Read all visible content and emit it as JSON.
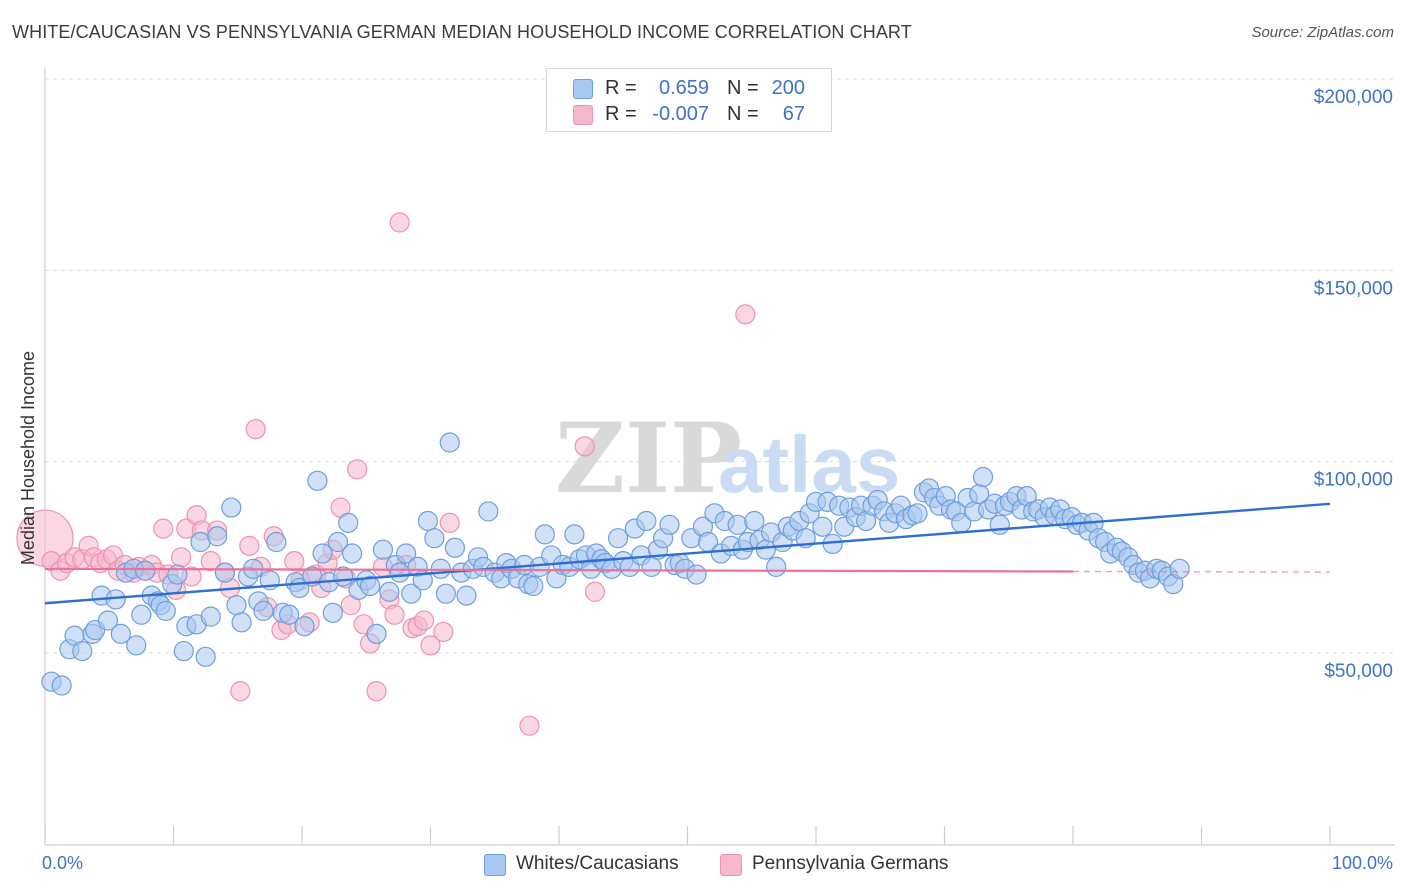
{
  "header": {
    "title": "WHITE/CAUCASIAN VS PENNSYLVANIA GERMAN MEDIAN HOUSEHOLD INCOME CORRELATION CHART",
    "source": "Source: ZipAtlas.com"
  },
  "watermark": "ZIPatlas",
  "legend_top": [
    {
      "r_label": "R =",
      "r_value": "0.659",
      "n_label": "N =",
      "n_value": "200",
      "color": "#a9c8f1"
    },
    {
      "r_label": "R =",
      "r_value": "-0.007",
      "n_label": "N =",
      "n_value": "67",
      "color": "#f5b7ca"
    }
  ],
  "legend_bottom": [
    {
      "label": "Whites/Caucasians",
      "color": "#a9c8f1"
    },
    {
      "label": "Pennsylvania Germans",
      "color": "#f5b7ca"
    }
  ],
  "colors": {
    "blue_fill": "#a9c8f1",
    "blue_stroke": "#6f9edc",
    "blue_line": "#2f6fcf",
    "pink_fill": "#f5b7ca",
    "pink_stroke": "#ec93ae",
    "pink_line": "#e8729b",
    "tick": "#3d72c9",
    "grid": "#dddddd"
  },
  "chart_data": {
    "type": "scatter",
    "title": "WHITE/CAUCASIAN VS PENNSYLVANIA GERMAN MEDIAN HOUSEHOLD INCOME CORRELATION CHART",
    "xlabel": "",
    "ylabel": "Median Household Income",
    "xlim": [
      0,
      100
    ],
    "ylim": [
      0,
      210000
    ],
    "x_tick_labels": [
      {
        "value": 0,
        "label": "0.0%"
      },
      {
        "value": 100,
        "label": "100.0%"
      }
    ],
    "y_ticks": [
      {
        "value": 50000,
        "label": "$50,000"
      },
      {
        "value": 100000,
        "label": "$100,000"
      },
      {
        "value": 150000,
        "label": "$150,000"
      },
      {
        "value": 200000,
        "label": "$200,000"
      }
    ],
    "grid": "horizontal dashed",
    "series": [
      {
        "name": "Whites/Caucasians",
        "trend": {
          "x0": 0,
          "y0": 63000,
          "x1": 100,
          "y1": 89000
        },
        "points": [
          [
            0.5,
            42500
          ],
          [
            1.3,
            41500
          ],
          [
            1.9,
            51000
          ],
          [
            2.3,
            54500
          ],
          [
            2.9,
            50500
          ],
          [
            3.7,
            55000
          ],
          [
            3.9,
            56000
          ],
          [
            4.4,
            65000
          ],
          [
            4.9,
            58500
          ],
          [
            5.5,
            64000
          ],
          [
            5.9,
            55000
          ],
          [
            6.3,
            71000
          ],
          [
            6.9,
            72000
          ],
          [
            7.1,
            52000
          ],
          [
            7.5,
            60000
          ],
          [
            7.8,
            71500
          ],
          [
            8.3,
            65000
          ],
          [
            8.8,
            63500
          ],
          [
            9.0,
            62500
          ],
          [
            9.4,
            61000
          ],
          [
            9.9,
            68000
          ],
          [
            10.3,
            70500
          ],
          [
            10.8,
            50500
          ],
          [
            11.0,
            57000
          ],
          [
            11.8,
            57500
          ],
          [
            12.1,
            79000
          ],
          [
            12.5,
            49000
          ],
          [
            12.9,
            59500
          ],
          [
            13.4,
            80500
          ],
          [
            14.0,
            71000
          ],
          [
            14.5,
            88000
          ],
          [
            14.9,
            62500
          ],
          [
            15.3,
            58000
          ],
          [
            15.8,
            70000
          ],
          [
            16.2,
            72000
          ],
          [
            16.6,
            63500
          ],
          [
            17.0,
            61000
          ],
          [
            17.5,
            69000
          ],
          [
            18.0,
            79000
          ],
          [
            18.5,
            60500
          ],
          [
            19.0,
            60000
          ],
          [
            19.5,
            68500
          ],
          [
            19.8,
            67000
          ],
          [
            20.2,
            57000
          ],
          [
            20.8,
            70000
          ],
          [
            21.2,
            95000
          ],
          [
            21.6,
            76000
          ],
          [
            22.1,
            68500
          ],
          [
            22.4,
            60500
          ],
          [
            22.8,
            79000
          ],
          [
            23.2,
            70000
          ],
          [
            23.6,
            84000
          ],
          [
            23.9,
            76000
          ],
          [
            24.4,
            66500
          ],
          [
            25.0,
            69000
          ],
          [
            25.3,
            67500
          ],
          [
            25.8,
            55000
          ],
          [
            26.3,
            77000
          ],
          [
            26.8,
            66000
          ],
          [
            27.3,
            73000
          ],
          [
            27.6,
            71000
          ],
          [
            28.1,
            76000
          ],
          [
            28.5,
            65500
          ],
          [
            29.0,
            72500
          ],
          [
            29.4,
            69000
          ],
          [
            29.8,
            84500
          ],
          [
            30.3,
            80000
          ],
          [
            30.8,
            72000
          ],
          [
            31.2,
            65500
          ],
          [
            31.5,
            105000
          ],
          [
            31.9,
            77500
          ],
          [
            32.4,
            71000
          ],
          [
            32.8,
            65000
          ],
          [
            33.3,
            72000
          ],
          [
            33.7,
            75000
          ],
          [
            34.1,
            72500
          ],
          [
            34.5,
            87000
          ],
          [
            35.0,
            71000
          ],
          [
            35.5,
            69500
          ],
          [
            35.9,
            73500
          ],
          [
            36.3,
            72000
          ],
          [
            36.8,
            69500
          ],
          [
            37.3,
            73000
          ],
          [
            37.6,
            68000
          ],
          [
            38.0,
            67500
          ],
          [
            38.5,
            72500
          ],
          [
            38.9,
            81000
          ],
          [
            39.4,
            75500
          ],
          [
            39.8,
            69500
          ],
          [
            40.3,
            73000
          ],
          [
            40.8,
            72500
          ],
          [
            41.2,
            81000
          ],
          [
            41.6,
            74500
          ],
          [
            42.1,
            75500
          ],
          [
            42.5,
            72000
          ],
          [
            42.9,
            76000
          ],
          [
            43.3,
            74500
          ],
          [
            43.6,
            73500
          ],
          [
            44.1,
            72000
          ],
          [
            44.6,
            80000
          ],
          [
            45.0,
            74000
          ],
          [
            45.5,
            72500
          ],
          [
            45.9,
            82500
          ],
          [
            46.4,
            75500
          ],
          [
            46.8,
            84500
          ],
          [
            47.2,
            72500
          ],
          [
            47.7,
            77000
          ],
          [
            48.1,
            80000
          ],
          [
            48.6,
            83500
          ],
          [
            49.0,
            73000
          ],
          [
            49.4,
            73500
          ],
          [
            49.8,
            72000
          ],
          [
            50.3,
            80000
          ],
          [
            50.7,
            70500
          ],
          [
            51.2,
            83000
          ],
          [
            51.6,
            79000
          ],
          [
            52.1,
            86500
          ],
          [
            52.6,
            76000
          ],
          [
            52.9,
            84500
          ],
          [
            53.4,
            78000
          ],
          [
            53.9,
            83500
          ],
          [
            54.3,
            77000
          ],
          [
            54.7,
            79000
          ],
          [
            55.2,
            84500
          ],
          [
            55.6,
            79500
          ],
          [
            56.1,
            77000
          ],
          [
            56.5,
            81500
          ],
          [
            56.9,
            72500
          ],
          [
            57.4,
            79000
          ],
          [
            57.8,
            83000
          ],
          [
            58.2,
            82000
          ],
          [
            58.7,
            84500
          ],
          [
            59.2,
            80000
          ],
          [
            59.5,
            86500
          ],
          [
            60.0,
            89500
          ],
          [
            60.5,
            83000
          ],
          [
            60.9,
            89500
          ],
          [
            61.3,
            78500
          ],
          [
            61.8,
            88500
          ],
          [
            62.2,
            83000
          ],
          [
            62.6,
            88000
          ],
          [
            63.1,
            85500
          ],
          [
            63.5,
            88500
          ],
          [
            63.9,
            84500
          ],
          [
            64.4,
            88500
          ],
          [
            64.8,
            90000
          ],
          [
            65.3,
            87000
          ],
          [
            65.7,
            84000
          ],
          [
            66.2,
            86500
          ],
          [
            66.6,
            88500
          ],
          [
            67.0,
            85000
          ],
          [
            67.5,
            86000
          ],
          [
            67.9,
            86500
          ],
          [
            68.4,
            92000
          ],
          [
            68.8,
            93000
          ],
          [
            69.2,
            90500
          ],
          [
            69.6,
            88500
          ],
          [
            70.1,
            91000
          ],
          [
            70.5,
            87500
          ],
          [
            70.9,
            87000
          ],
          [
            71.3,
            84000
          ],
          [
            71.8,
            90500
          ],
          [
            72.3,
            87000
          ],
          [
            72.7,
            91500
          ],
          [
            73.0,
            96000
          ],
          [
            73.4,
            87500
          ],
          [
            73.9,
            89000
          ],
          [
            74.3,
            83500
          ],
          [
            74.7,
            88500
          ],
          [
            75.1,
            89500
          ],
          [
            75.6,
            91000
          ],
          [
            76.0,
            87500
          ],
          [
            76.4,
            91000
          ],
          [
            76.9,
            87000
          ],
          [
            77.3,
            87500
          ],
          [
            77.8,
            85500
          ],
          [
            78.2,
            88000
          ],
          [
            78.6,
            86000
          ],
          [
            79.0,
            87500
          ],
          [
            79.4,
            85000
          ],
          [
            79.9,
            85500
          ],
          [
            80.3,
            83500
          ],
          [
            80.7,
            84000
          ],
          [
            81.2,
            82000
          ],
          [
            81.6,
            84000
          ],
          [
            82.0,
            80000
          ],
          [
            82.5,
            79000
          ],
          [
            82.9,
            76000
          ],
          [
            83.4,
            77500
          ],
          [
            83.8,
            76500
          ],
          [
            84.3,
            75000
          ],
          [
            84.7,
            73000
          ],
          [
            85.1,
            71000
          ],
          [
            85.6,
            71500
          ],
          [
            86.0,
            69500
          ],
          [
            86.5,
            72000
          ],
          [
            86.9,
            71500
          ],
          [
            87.4,
            70000
          ],
          [
            87.8,
            68000
          ],
          [
            88.3,
            72000
          ]
        ]
      },
      {
        "name": "Pennsylvania Germans",
        "trend": {
          "x0": 0,
          "y0": 72000,
          "x1": 80,
          "y1": 71300
        },
        "trend_dashed_to": 100,
        "points": [
          [
            0,
            80000
          ],
          [
            0.5,
            74000
          ],
          [
            1.2,
            71500
          ],
          [
            1.7,
            73500
          ],
          [
            2.3,
            75000
          ],
          [
            2.9,
            74500
          ],
          [
            3.4,
            78000
          ],
          [
            3.8,
            75000
          ],
          [
            4.3,
            73500
          ],
          [
            4.8,
            74500
          ],
          [
            5.3,
            75500
          ],
          [
            5.7,
            71500
          ],
          [
            6.2,
            73000
          ],
          [
            6.9,
            71000
          ],
          [
            7.3,
            72500
          ],
          [
            7.8,
            71500
          ],
          [
            8.3,
            73000
          ],
          [
            8.7,
            71000
          ],
          [
            9.2,
            82500
          ],
          [
            9.6,
            70500
          ],
          [
            10.2,
            66500
          ],
          [
            10.6,
            75000
          ],
          [
            11.0,
            82500
          ],
          [
            11.4,
            70000
          ],
          [
            11.8,
            86000
          ],
          [
            12.2,
            82000
          ],
          [
            12.9,
            74000
          ],
          [
            13.4,
            82000
          ],
          [
            14.0,
            71000
          ],
          [
            14.4,
            67000
          ],
          [
            15.2,
            40000
          ],
          [
            15.9,
            78000
          ],
          [
            16.4,
            108500
          ],
          [
            16.8,
            72500
          ],
          [
            17.3,
            62000
          ],
          [
            17.8,
            80500
          ],
          [
            18.4,
            56000
          ],
          [
            18.9,
            57500
          ],
          [
            19.4,
            74000
          ],
          [
            19.9,
            69000
          ],
          [
            20.6,
            58000
          ],
          [
            21.1,
            70500
          ],
          [
            21.5,
            67000
          ],
          [
            22.0,
            73500
          ],
          [
            22.4,
            77000
          ],
          [
            23.0,
            88000
          ],
          [
            23.4,
            69500
          ],
          [
            23.8,
            62500
          ],
          [
            24.3,
            98000
          ],
          [
            24.8,
            57500
          ],
          [
            25.3,
            52500
          ],
          [
            25.8,
            40000
          ],
          [
            26.3,
            72500
          ],
          [
            26.8,
            64000
          ],
          [
            27.2,
            60000
          ],
          [
            27.6,
            162500
          ],
          [
            28.1,
            73000
          ],
          [
            28.6,
            56500
          ],
          [
            29.0,
            57000
          ],
          [
            29.5,
            58500
          ],
          [
            30.0,
            52000
          ],
          [
            31.0,
            55500
          ],
          [
            31.5,
            84000
          ],
          [
            37.7,
            31000
          ],
          [
            42.0,
            104000
          ],
          [
            42.8,
            66000
          ],
          [
            54.5,
            138500
          ]
        ]
      }
    ]
  }
}
